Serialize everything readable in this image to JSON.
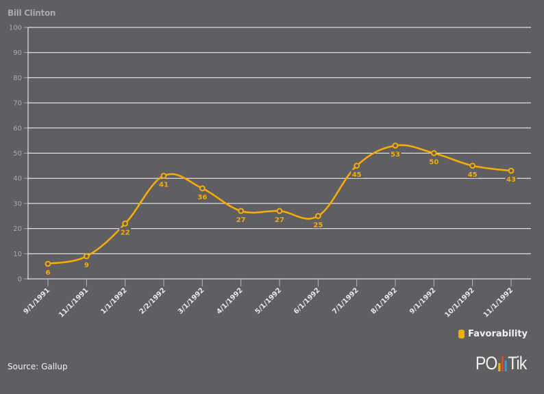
{
  "chart_data": {
    "type": "line",
    "title": "Bill Clinton",
    "xlabel": "",
    "ylabel": "",
    "ylim": [
      0,
      100
    ],
    "yticks": [
      0,
      10,
      20,
      30,
      40,
      50,
      60,
      70,
      80,
      90,
      100
    ],
    "grid": true,
    "categories": [
      "9/1/1991",
      "11/1/1991",
      "1/1/1992",
      "2/2/1992",
      "3/1/1992",
      "4/1/1992",
      "5/1/1992",
      "6/1/1992",
      "7/1/1992",
      "8/1/1992",
      "9/1/1992",
      "10/1/1992",
      "11/1/1992"
    ],
    "series": [
      {
        "name": "Favorability",
        "color": "#f5ad00",
        "values": [
          6,
          9,
          22,
          41,
          36,
          27,
          27,
          25,
          45,
          53,
          50,
          45,
          43
        ]
      }
    ],
    "legend_position": "bottom-right"
  },
  "title": "Bill Clinton",
  "legend": {
    "label": "Favorability",
    "color": "#f5ad00"
  },
  "source": "Source: Gallup",
  "logo": {
    "text_left": "PO",
    "text_right": "Tik",
    "bar_colors": [
      "#f5ad00",
      "#e8492a",
      "#2a9bd8"
    ]
  }
}
